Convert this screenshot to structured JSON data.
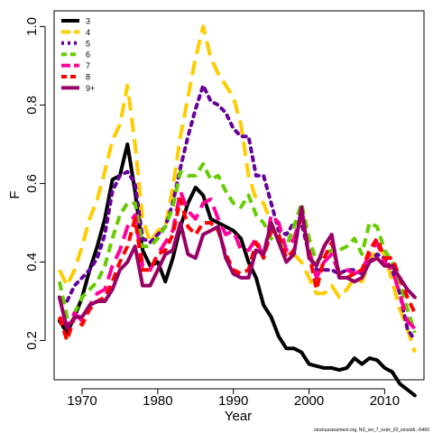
{
  "chart_data": {
    "type": "line",
    "xlabel": "Year",
    "ylabel": "F",
    "footnote": "stockassessment.org, NS_sei_7_exdx_20_smooth, r6466",
    "xlim": [
      1966.3,
      2015.2
    ],
    "ylim": [
      0.1,
      1.04
    ],
    "x_ticks": [
      1970,
      1980,
      1990,
      2000,
      2010
    ],
    "y_ticks": [
      0.2,
      0.4,
      0.6,
      0.8,
      1.0
    ],
    "y_tick_labels": [
      "0.2",
      "0.4",
      "0.6",
      "0.8",
      "1.0"
    ],
    "legend_position": "top-left",
    "grid": false,
    "series": [
      {
        "name": "3",
        "color": "#000000",
        "dash": "solid",
        "x": [
          1967,
          1968,
          1969,
          1970,
          1971,
          1972,
          1973,
          1974,
          1975,
          1976,
          1977,
          1978,
          1979,
          1980,
          1981,
          1982,
          1983,
          1984,
          1985,
          1986,
          1987,
          1988,
          1989,
          1990,
          1991,
          1992,
          1993,
          1994,
          1995,
          1996,
          1997,
          1998,
          1999,
          2000,
          2001,
          2002,
          2003,
          2004,
          2005,
          2006,
          2007,
          2008,
          2009,
          2010,
          2011,
          2012,
          2013,
          2014
        ],
        "y": [
          0.25,
          0.22,
          0.26,
          0.31,
          0.38,
          0.44,
          0.51,
          0.61,
          0.62,
          0.7,
          0.58,
          0.43,
          0.39,
          0.4,
          0.35,
          0.41,
          0.49,
          0.55,
          0.59,
          0.57,
          0.51,
          0.5,
          0.49,
          0.48,
          0.46,
          0.4,
          0.36,
          0.29,
          0.26,
          0.21,
          0.18,
          0.18,
          0.17,
          0.14,
          0.135,
          0.13,
          0.13,
          0.125,
          0.13,
          0.155,
          0.14,
          0.155,
          0.15,
          0.13,
          0.12,
          0.09,
          0.075,
          0.06
        ]
      },
      {
        "name": "4",
        "color": "#FFCC00",
        "dash": "long",
        "x": [
          1967,
          1968,
          1969,
          1970,
          1971,
          1972,
          1973,
          1974,
          1975,
          1976,
          1977,
          1978,
          1979,
          1980,
          1981,
          1982,
          1983,
          1984,
          1985,
          1986,
          1987,
          1988,
          1989,
          1990,
          1991,
          1992,
          1993,
          1994,
          1995,
          1996,
          1997,
          1998,
          1999,
          2000,
          2001,
          2002,
          2003,
          2004,
          2005,
          2006,
          2007,
          2008,
          2009,
          2010,
          2011,
          2012,
          2013,
          2014
        ],
        "y": [
          0.38,
          0.34,
          0.38,
          0.44,
          0.51,
          0.56,
          0.63,
          0.71,
          0.75,
          0.85,
          0.7,
          0.51,
          0.45,
          0.48,
          0.49,
          0.59,
          0.72,
          0.82,
          0.92,
          1.0,
          0.92,
          0.88,
          0.85,
          0.82,
          0.75,
          0.62,
          0.56,
          0.55,
          0.5,
          0.46,
          0.42,
          0.42,
          0.4,
          0.36,
          0.32,
          0.32,
          0.34,
          0.31,
          0.33,
          0.36,
          0.35,
          0.4,
          0.44,
          0.42,
          0.35,
          0.28,
          0.23,
          0.17
        ]
      },
      {
        "name": "5",
        "color": "#660099",
        "dash": "dotted",
        "x": [
          1967,
          1968,
          1969,
          1970,
          1971,
          1972,
          1973,
          1974,
          1975,
          1976,
          1977,
          1978,
          1979,
          1980,
          1981,
          1982,
          1983,
          1984,
          1985,
          1986,
          1987,
          1988,
          1989,
          1990,
          1991,
          1992,
          1993,
          1994,
          1995,
          1996,
          1997,
          1998,
          1999,
          2000,
          2001,
          2002,
          2003,
          2004,
          2005,
          2006,
          2007,
          2008,
          2009,
          2010,
          2011,
          2012,
          2013,
          2014
        ],
        "y": [
          0.31,
          0.3,
          0.34,
          0.36,
          0.38,
          0.41,
          0.47,
          0.58,
          0.62,
          0.63,
          0.6,
          0.46,
          0.45,
          0.47,
          0.49,
          0.55,
          0.64,
          0.72,
          0.79,
          0.85,
          0.81,
          0.8,
          0.78,
          0.74,
          0.72,
          0.72,
          0.62,
          0.62,
          0.55,
          0.48,
          0.47,
          0.5,
          0.5,
          0.42,
          0.38,
          0.38,
          0.38,
          0.37,
          0.38,
          0.38,
          0.37,
          0.4,
          0.42,
          0.41,
          0.38,
          0.32,
          0.23,
          0.2
        ]
      },
      {
        "name": "6",
        "color": "#66CC00",
        "dash": "dashed",
        "x": [
          1967,
          1968,
          1969,
          1970,
          1971,
          1972,
          1973,
          1974,
          1975,
          1976,
          1977,
          1978,
          1979,
          1980,
          1981,
          1982,
          1983,
          1984,
          1985,
          1986,
          1987,
          1988,
          1989,
          1990,
          1991,
          1992,
          1993,
          1994,
          1995,
          1996,
          1997,
          1998,
          1999,
          2000,
          2001,
          2002,
          2003,
          2004,
          2005,
          2006,
          2007,
          2008,
          2009,
          2010,
          2011,
          2012,
          2013,
          2014
        ],
        "y": [
          0.35,
          0.26,
          0.27,
          0.31,
          0.33,
          0.35,
          0.39,
          0.46,
          0.52,
          0.55,
          0.55,
          0.44,
          0.44,
          0.46,
          0.49,
          0.54,
          0.63,
          0.62,
          0.62,
          0.65,
          0.61,
          0.62,
          0.58,
          0.55,
          0.54,
          0.57,
          0.52,
          0.5,
          0.46,
          0.45,
          0.44,
          0.49,
          0.55,
          0.46,
          0.4,
          0.42,
          0.43,
          0.43,
          0.44,
          0.46,
          0.42,
          0.5,
          0.49,
          0.43,
          0.4,
          0.35,
          0.28,
          0.22
        ]
      },
      {
        "name": "7",
        "color": "#FF0099",
        "dash": "long",
        "x": [
          1967,
          1968,
          1969,
          1970,
          1971,
          1972,
          1973,
          1974,
          1975,
          1976,
          1977,
          1978,
          1979,
          1980,
          1981,
          1982,
          1983,
          1984,
          1985,
          1986,
          1987,
          1988,
          1989,
          1990,
          1991,
          1992,
          1993,
          1994,
          1995,
          1996,
          1997,
          1998,
          1999,
          2000,
          2001,
          2002,
          2003,
          2004,
          2005,
          2006,
          2007,
          2008,
          2009,
          2010,
          2011,
          2012,
          2013,
          2014
        ],
        "y": [
          0.26,
          0.24,
          0.27,
          0.25,
          0.29,
          0.32,
          0.33,
          0.39,
          0.43,
          0.49,
          0.52,
          0.39,
          0.38,
          0.42,
          0.45,
          0.48,
          0.58,
          0.53,
          0.51,
          0.55,
          0.56,
          0.51,
          0.47,
          0.48,
          0.43,
          0.43,
          0.46,
          0.41,
          0.52,
          0.5,
          0.43,
          0.46,
          0.52,
          0.43,
          0.36,
          0.4,
          0.42,
          0.37,
          0.38,
          0.37,
          0.38,
          0.42,
          0.45,
          0.4,
          0.38,
          0.32,
          0.25,
          0.23
        ]
      },
      {
        "name": "8",
        "color": "#FF0000",
        "dash": "dashed",
        "x": [
          1967,
          1968,
          1969,
          1970,
          1971,
          1972,
          1973,
          1974,
          1975,
          1976,
          1977,
          1978,
          1979,
          1980,
          1981,
          1982,
          1983,
          1984,
          1985,
          1986,
          1987,
          1988,
          1989,
          1990,
          1991,
          1992,
          1993,
          1994,
          1995,
          1996,
          1997,
          1998,
          1999,
          2000,
          2001,
          2002,
          2003,
          2004,
          2005,
          2006,
          2007,
          2008,
          2009,
          2010,
          2011,
          2012,
          2013,
          2014
        ],
        "y": [
          0.26,
          0.2,
          0.26,
          0.24,
          0.28,
          0.3,
          0.31,
          0.35,
          0.4,
          0.44,
          0.51,
          0.38,
          0.38,
          0.42,
          0.43,
          0.47,
          0.56,
          0.49,
          0.47,
          0.5,
          0.5,
          0.48,
          0.42,
          0.38,
          0.37,
          0.38,
          0.45,
          0.41,
          0.48,
          0.47,
          0.41,
          0.43,
          0.53,
          0.42,
          0.33,
          0.41,
          0.45,
          0.37,
          0.36,
          0.37,
          0.38,
          0.43,
          0.46,
          0.41,
          0.41,
          0.36,
          0.31,
          0.27
        ]
      },
      {
        "name": "9+",
        "color": "#990066",
        "dash": "solid",
        "x": [
          1967,
          1968,
          1969,
          1970,
          1971,
          1972,
          1973,
          1974,
          1975,
          1976,
          1977,
          1978,
          1979,
          1980,
          1981,
          1982,
          1983,
          1984,
          1985,
          1986,
          1987,
          1988,
          1989,
          1990,
          1991,
          1992,
          1993,
          1994,
          1995,
          1996,
          1997,
          1998,
          1999,
          2000,
          2001,
          2002,
          2003,
          2004,
          2005,
          2006,
          2007,
          2008,
          2009,
          2010,
          2011,
          2012,
          2013,
          2014
        ],
        "y": [
          0.31,
          0.23,
          0.26,
          0.26,
          0.29,
          0.3,
          0.3,
          0.33,
          0.38,
          0.4,
          0.44,
          0.34,
          0.34,
          0.38,
          0.42,
          0.43,
          0.5,
          0.42,
          0.41,
          0.47,
          0.48,
          0.49,
          0.41,
          0.37,
          0.36,
          0.36,
          0.43,
          0.42,
          0.5,
          0.45,
          0.4,
          0.42,
          0.54,
          0.41,
          0.39,
          0.44,
          0.47,
          0.36,
          0.36,
          0.35,
          0.36,
          0.4,
          0.41,
          0.39,
          0.39,
          0.36,
          0.33,
          0.31
        ]
      }
    ]
  }
}
